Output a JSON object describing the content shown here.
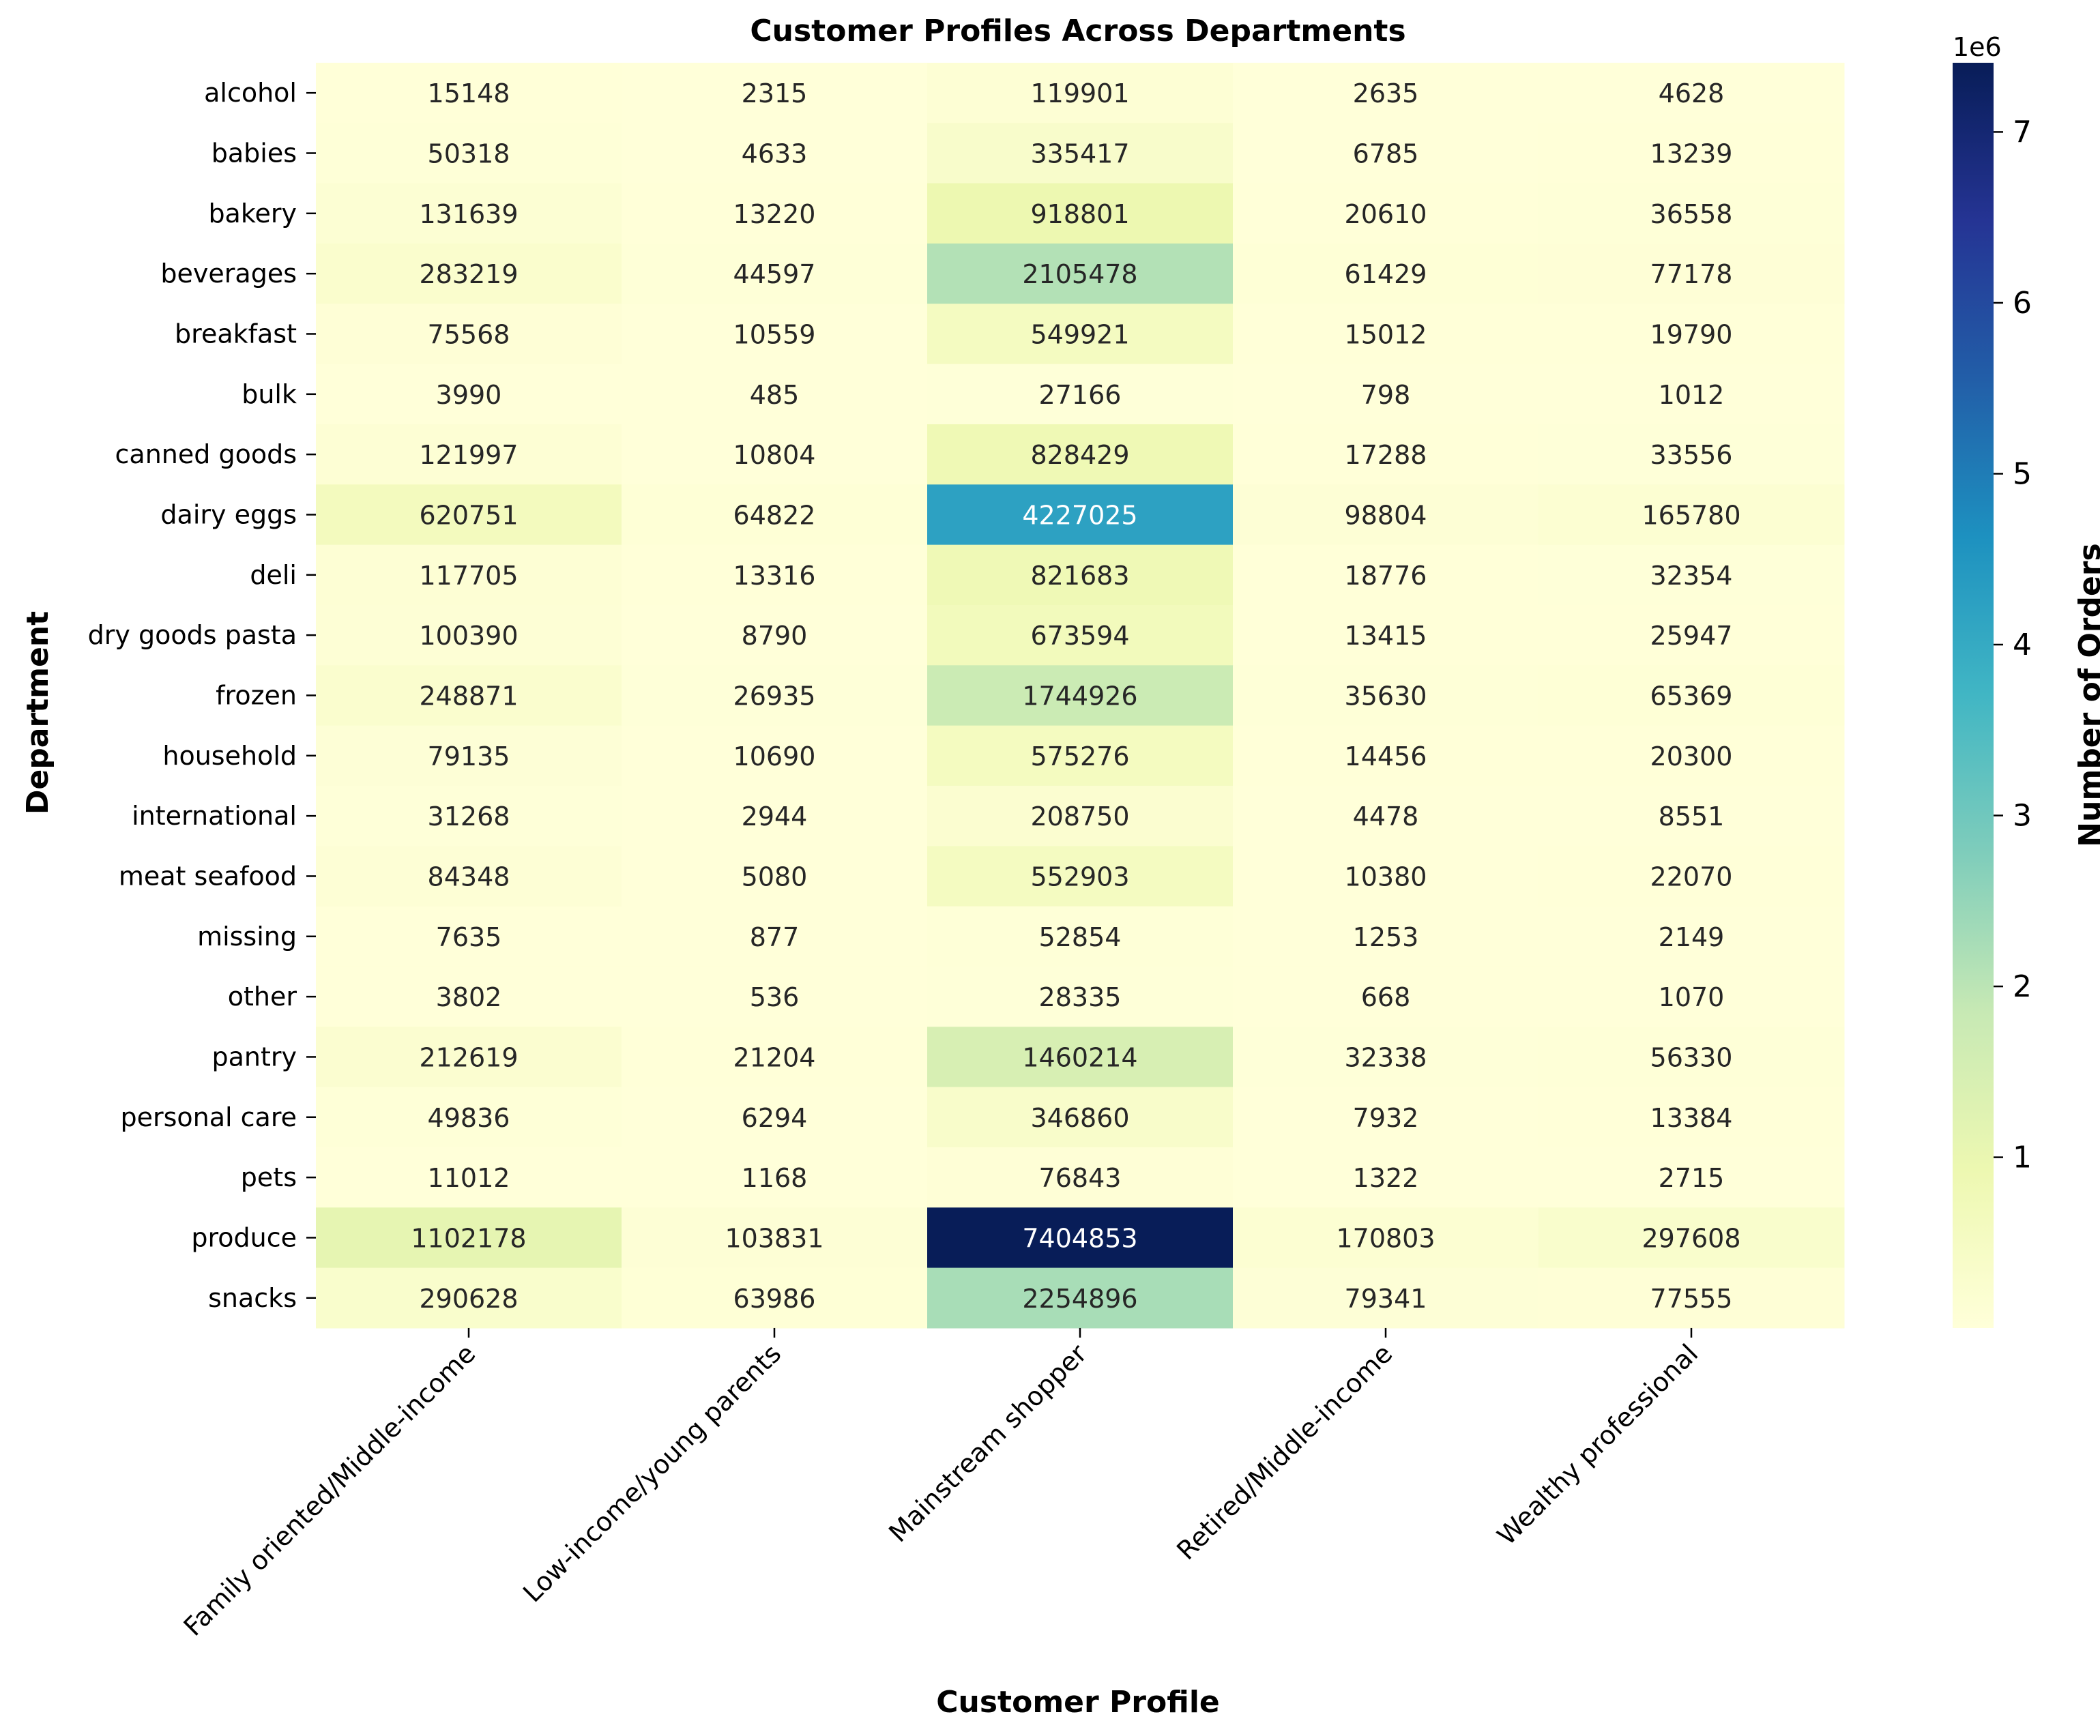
{
  "chart_data": {
    "type": "heatmap",
    "title": "Customer Profiles Across Departments",
    "xlabel": "Customer Profile",
    "ylabel": "Department",
    "colorbar_label": "Number of Orders",
    "colorbar_offset_text": "1e6",
    "colorbar_ticks": [
      "1",
      "2",
      "3",
      "4",
      "5",
      "6",
      "7"
    ],
    "colormap": "YlGnBu",
    "colormap_stops": [
      "#ffffd9",
      "#edf8b1",
      "#c7e9b4",
      "#7fcdbb",
      "#41b6c4",
      "#1d91c0",
      "#225ea8",
      "#253494",
      "#081d58"
    ],
    "value_range": [
      485,
      7404853
    ],
    "columns": [
      "Family oriented/Middle-income",
      "Low-income/young parents",
      "Mainstream shopper",
      "Retired/Middle-income",
      "Wealthy professional"
    ],
    "rows": [
      "alcohol",
      "babies",
      "bakery",
      "beverages",
      "breakfast",
      "bulk",
      "canned goods",
      "dairy eggs",
      "deli",
      "dry goods pasta",
      "frozen",
      "household",
      "international",
      "meat seafood",
      "missing",
      "other",
      "pantry",
      "personal care",
      "pets",
      "produce",
      "snacks"
    ],
    "values": [
      [
        15148,
        2315,
        119901,
        2635,
        4628
      ],
      [
        50318,
        4633,
        335417,
        6785,
        13239
      ],
      [
        131639,
        13220,
        918801,
        20610,
        36558
      ],
      [
        283219,
        44597,
        2105478,
        61429,
        77178
      ],
      [
        75568,
        10559,
        549921,
        15012,
        19790
      ],
      [
        3990,
        485,
        27166,
        798,
        1012
      ],
      [
        121997,
        10804,
        828429,
        17288,
        33556
      ],
      [
        620751,
        64822,
        4227025,
        98804,
        165780
      ],
      [
        117705,
        13316,
        821683,
        18776,
        32354
      ],
      [
        100390,
        8790,
        673594,
        13415,
        25947
      ],
      [
        248871,
        26935,
        1744926,
        35630,
        65369
      ],
      [
        79135,
        10690,
        575276,
        14456,
        20300
      ],
      [
        31268,
        2944,
        208750,
        4478,
        8551
      ],
      [
        84348,
        5080,
        552903,
        10380,
        22070
      ],
      [
        7635,
        877,
        52854,
        1253,
        2149
      ],
      [
        3802,
        536,
        28335,
        668,
        1070
      ],
      [
        212619,
        21204,
        1460214,
        32338,
        56330
      ],
      [
        49836,
        6294,
        346860,
        7932,
        13384
      ],
      [
        11012,
        1168,
        76843,
        1322,
        2715
      ],
      [
        1102178,
        103831,
        7404853,
        170803,
        297608
      ],
      [
        290628,
        63986,
        2254896,
        79341,
        77555
      ]
    ]
  }
}
